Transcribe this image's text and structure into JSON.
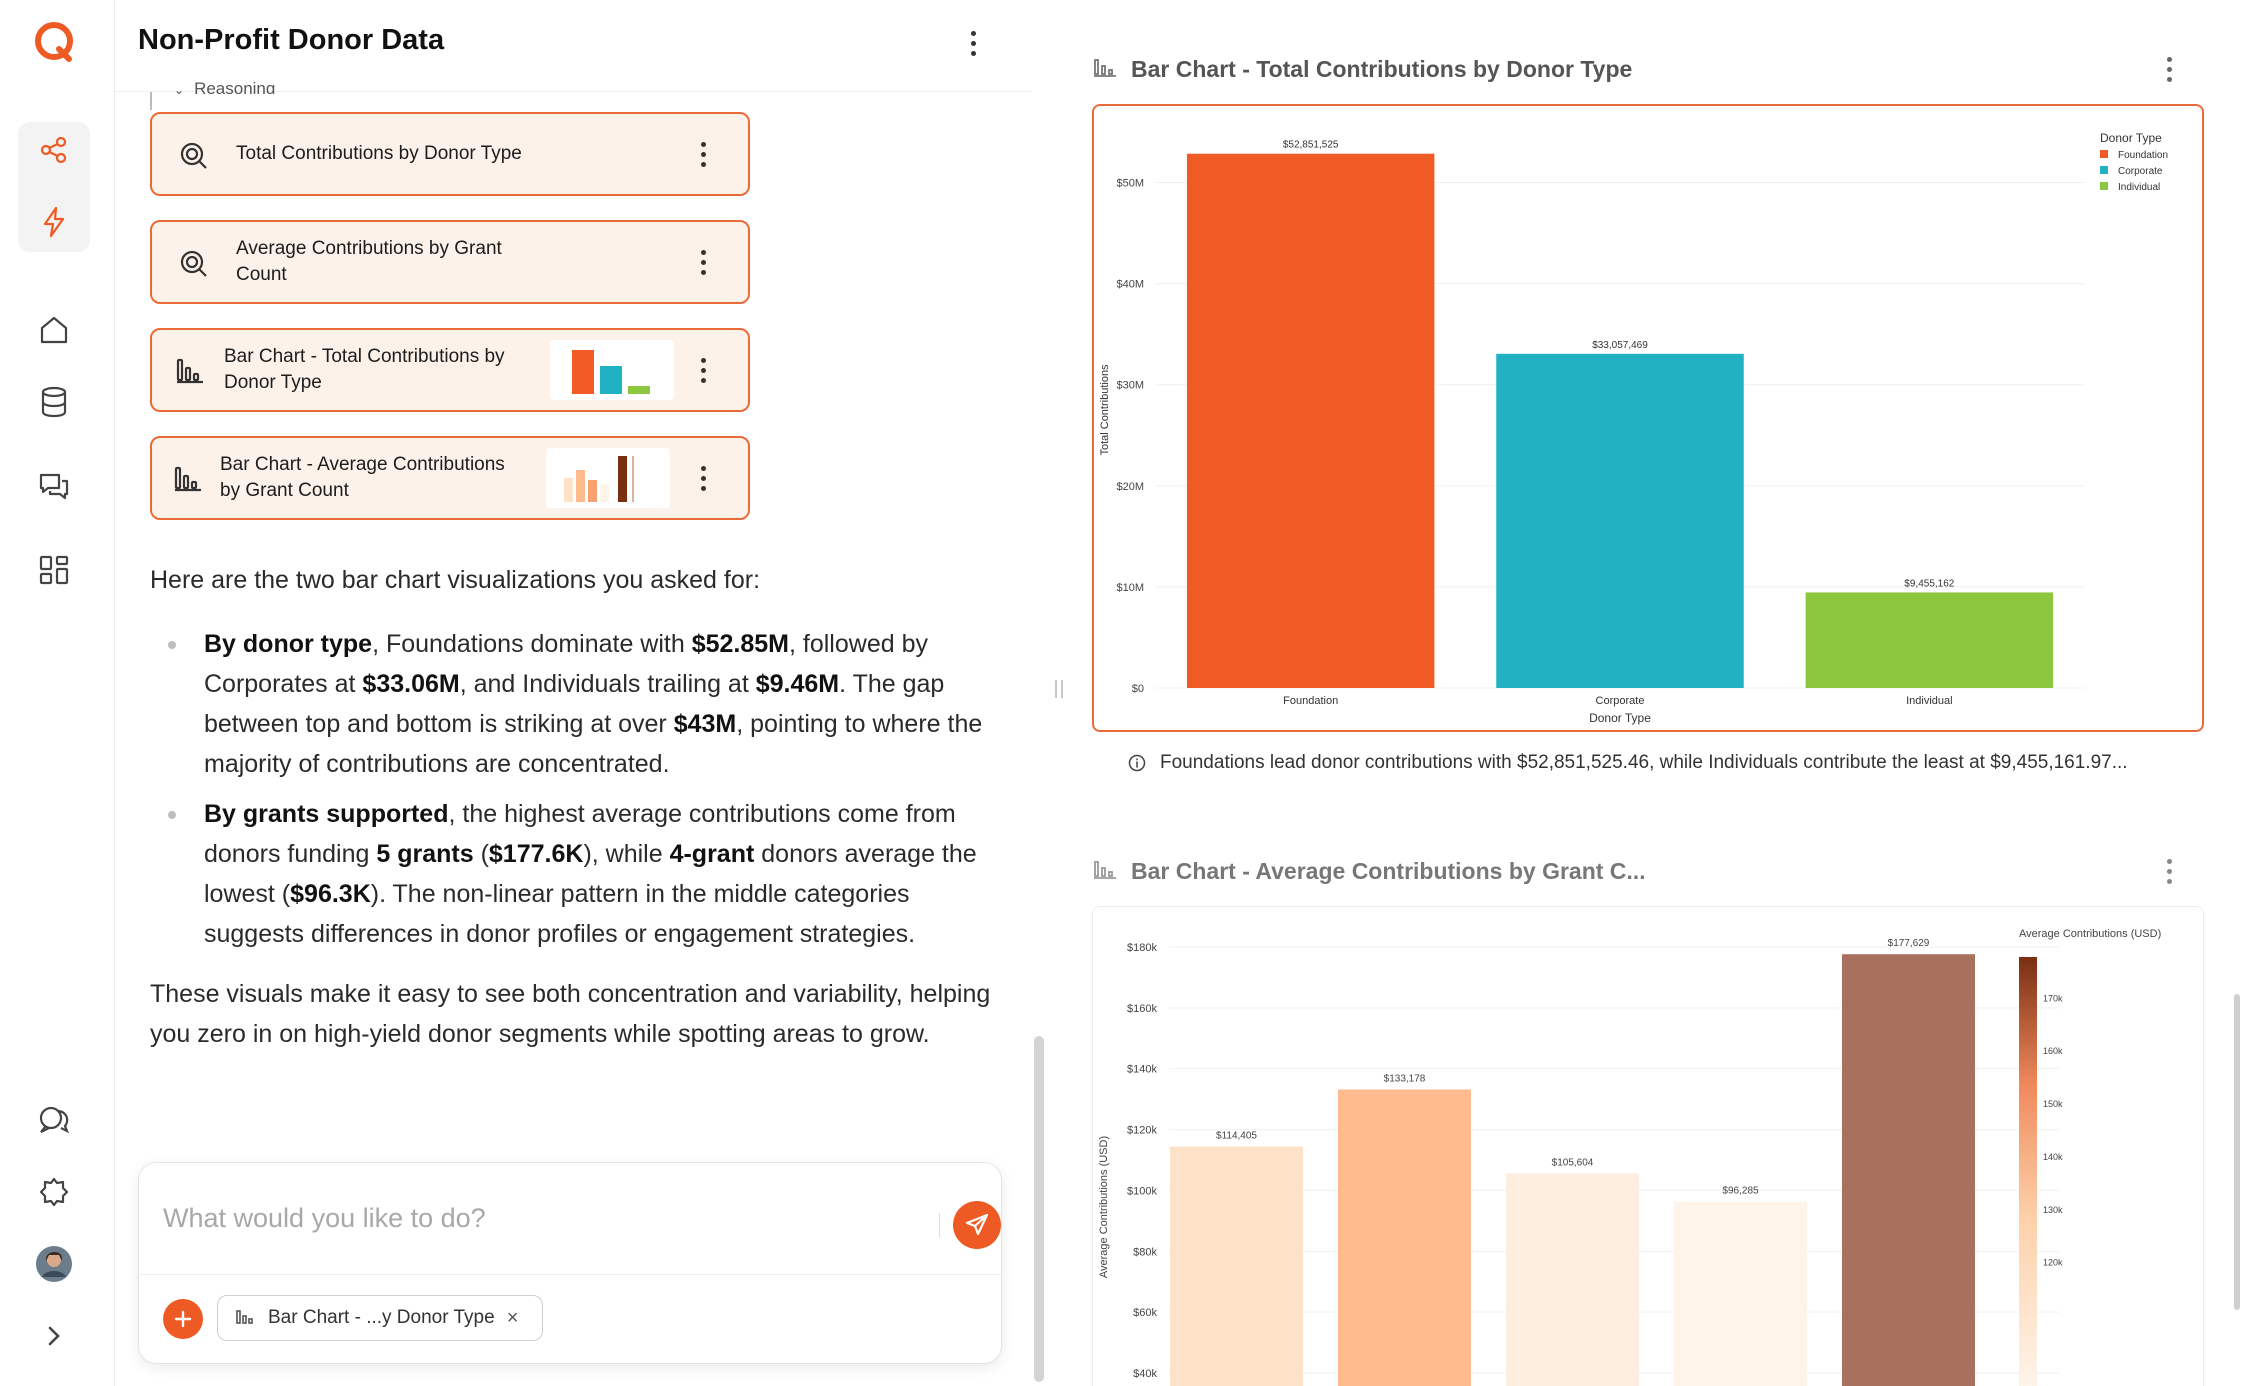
{
  "app": {
    "rail_icons": [
      "logo-icon",
      "share-icon",
      "lightning-icon",
      "home-icon",
      "database-icon",
      "chat-icon",
      "dashboard-icon",
      "comments-icon",
      "puzzle-icon",
      "avatar",
      "expand-icon"
    ],
    "accent": "#ee5a24"
  },
  "chat": {
    "title": "Non-Profit Donor Data",
    "reasoning_label": "Reasoning",
    "steps": [
      {
        "label": "Total Contributions by Donor Type",
        "icon": "query-icon"
      },
      {
        "label": "Average Contributions by Grant Count",
        "icon": "query-icon"
      },
      {
        "label": "Bar Chart - Total Contributions by Donor Type",
        "icon": "bar-chart-icon"
      },
      {
        "label": "Bar Chart - Average Contributions by Grant Count",
        "icon": "bar-chart-icon"
      }
    ],
    "response": {
      "intro": "Here are the two bar chart visualizations you asked for:",
      "b1_bold1": "By donor type",
      "b1_t1": ", Foundations dominate with ",
      "b1_bold2": "$52.85M",
      "b1_t2": ", followed by Corporates at ",
      "b1_bold3": "$33.06M",
      "b1_t3": ", and Individuals trailing at ",
      "b1_bold4": "$9.46M",
      "b1_t4": ". The gap between top and bottom is striking at over ",
      "b1_bold5": "$43M",
      "b1_t5": ", pointing to where the majority of contributions are concentrated.",
      "b2_bold1": "By grants supported",
      "b2_t1": ", the highest average contributions come from donors funding ",
      "b2_bold2": "5 grants",
      "b2_t2": " (",
      "b2_bold3": "$177.6K",
      "b2_t3": "), while ",
      "b2_bold4": "4-grant",
      "b2_t4": " donors average the lowest (",
      "b2_bold5": "$96.3K",
      "b2_t5": "). The non-linear pattern in the middle categories suggests differences in donor profiles or engagement strategies.",
      "outro": "These visuals make it easy to see both concentration and variability, helping you zero in on high-yield donor segments while spotting areas to grow."
    },
    "composer": {
      "placeholder": "What would you like to do?",
      "chip_label": "Bar Chart - ...y Donor Type",
      "chip_close": "×"
    }
  },
  "panel": {
    "chart1_title": "Bar Chart - Total Contributions by Donor Type",
    "chart2_title": "Bar Chart - Average Contributions by Grant C...",
    "insight": "Foundations lead donor contributions with $52,851,525.46, while Individuals contribute the least at $9,455,161.97..."
  },
  "chart_data": [
    {
      "type": "bar",
      "categories": [
        "Foundation",
        "Corporate",
        "Individual"
      ],
      "values": [
        52851525,
        33057469,
        9455162
      ],
      "value_labels": [
        "$52,851,525",
        "$33,057,469",
        "$9,455,162"
      ],
      "colors": [
        "#f05a24",
        "#22b0c3",
        "#8dc63f"
      ],
      "xlabel": "Donor Type",
      "ylabel": "Total Contributions",
      "ylim": [
        0,
        55000000
      ],
      "yticks": [
        0,
        10000000,
        20000000,
        30000000,
        40000000,
        50000000
      ],
      "ytick_labels": [
        "$0",
        "$10M",
        "$20M",
        "$30M",
        "$40M",
        "$50M"
      ],
      "legend": {
        "title": "Donor Type",
        "entries": [
          "Foundation",
          "Corporate",
          "Individual"
        ],
        "placement": "top-right"
      }
    },
    {
      "type": "bar",
      "values": [
        114405,
        133178,
        105604,
        96285,
        177629
      ],
      "value_labels": [
        "$114,405",
        "$133,178",
        "$105,604",
        "$96,285",
        "$177,629"
      ],
      "colors": [
        "#fde2c8",
        "#fdbb8e",
        "#fdeedf",
        "#fef4ea",
        "#a9705e"
      ],
      "ylabel": "Average Contributions (USD)",
      "ylim": [
        40000,
        185000
      ],
      "yticks": [
        40000,
        60000,
        80000,
        100000,
        120000,
        140000,
        160000,
        180000
      ],
      "ytick_labels": [
        "$40k",
        "$60k",
        "$80k",
        "$100k",
        "$120k",
        "$140k",
        "$160k",
        "$180k"
      ],
      "colorbar": {
        "title": "Average Contributions (USD)",
        "ticks": [
          120000,
          130000,
          140000,
          150000,
          160000,
          170000
        ],
        "tick_labels": [
          "120k",
          "130k",
          "140k",
          "150k",
          "160k",
          "170k"
        ],
        "range": [
          96285,
          177629
        ],
        "placement": "right"
      }
    }
  ]
}
